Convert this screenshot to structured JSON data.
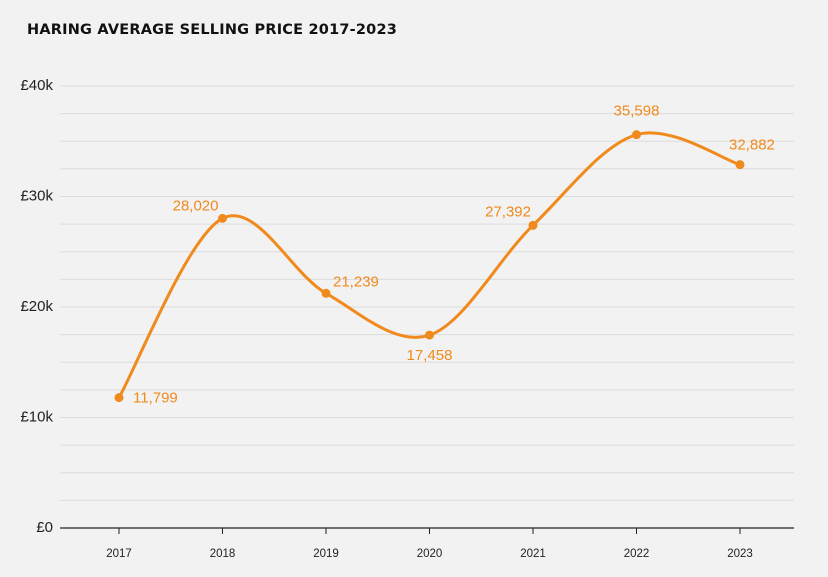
{
  "chart_data": {
    "type": "line",
    "title": "HARING AVERAGE SELLING PRICE 2017-2023",
    "xlabel": "",
    "ylabel": "",
    "categories": [
      "2017",
      "2018",
      "2019",
      "2020",
      "2021",
      "2022",
      "2023"
    ],
    "values": [
      11799,
      28020,
      21239,
      17458,
      27392,
      35598,
      32882
    ],
    "data_labels": [
      "11,799",
      "28,020",
      "21,239",
      "17,458",
      "27,392",
      "35,598",
      "32,882"
    ],
    "ylim": [
      0,
      40000
    ],
    "yticks": [
      0,
      10000,
      20000,
      30000,
      40000
    ],
    "ytick_labels": [
      "£0",
      "£10k",
      "£20k",
      "£30k",
      "£40k"
    ],
    "grid": true,
    "line_color": "#f08a1c",
    "label_color": "#f08a1c",
    "smooth": true
  }
}
